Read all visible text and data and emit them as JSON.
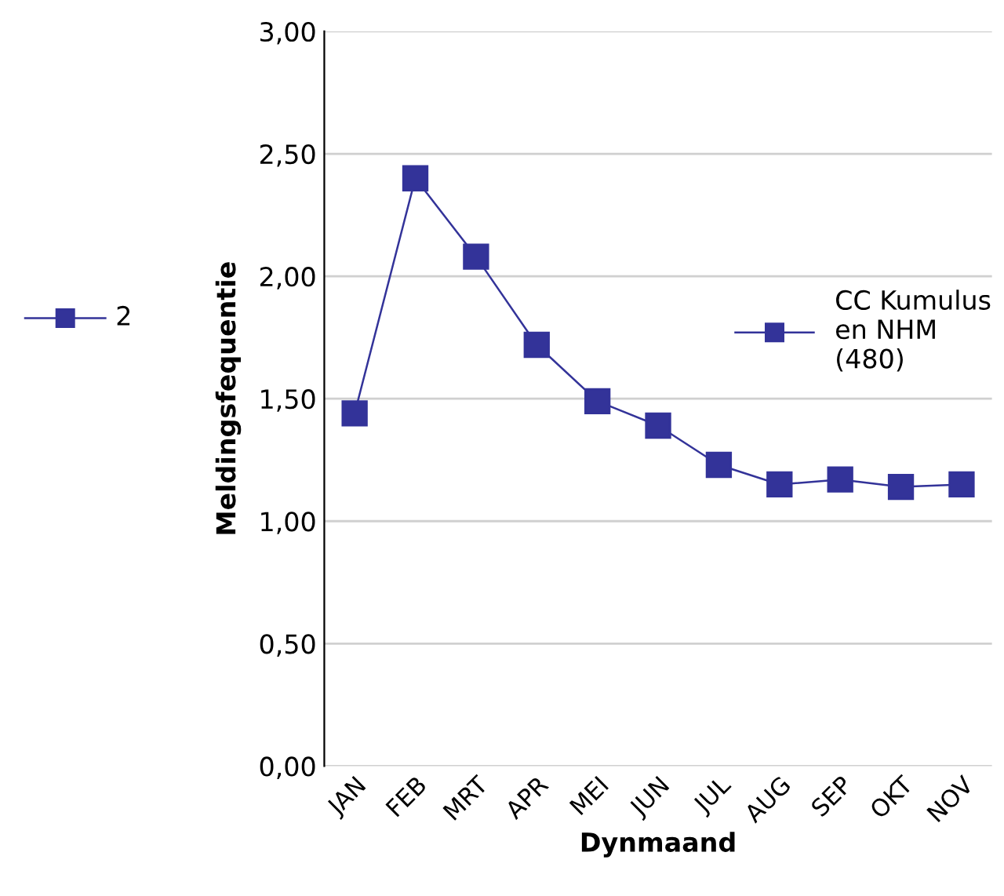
{
  "chart_data": {
    "type": "line",
    "xlabel": "Dynmaand",
    "ylabel": "Meldingsfequentie",
    "categories": [
      "JAN",
      "FEB",
      "MRT",
      "APR",
      "MEI",
      "JUN",
      "JUL",
      "AUG",
      "SEP",
      "OKT",
      "NOV"
    ],
    "series": [
      {
        "name": "CC Kumulus en NHM (480)",
        "color": "#333399",
        "values": [
          1.44,
          2.4,
          2.08,
          1.72,
          1.49,
          1.39,
          1.23,
          1.15,
          1.17,
          1.14,
          1.15
        ]
      }
    ],
    "annotations": [
      "2"
    ],
    "ylim": [
      0,
      3
    ],
    "yticks": [
      {
        "value": 0,
        "label": "0,00"
      },
      {
        "value": 0.5,
        "label": "0,50"
      },
      {
        "value": 1,
        "label": "1,00"
      },
      {
        "value": 1.5,
        "label": "1,50"
      },
      {
        "value": 2,
        "label": "2,00"
      },
      {
        "value": 2.5,
        "label": "2,50"
      },
      {
        "value": 3,
        "label": "3,00"
      }
    ],
    "grid": "y",
    "legend": "right",
    "marker": "square",
    "line_style": "solid"
  }
}
